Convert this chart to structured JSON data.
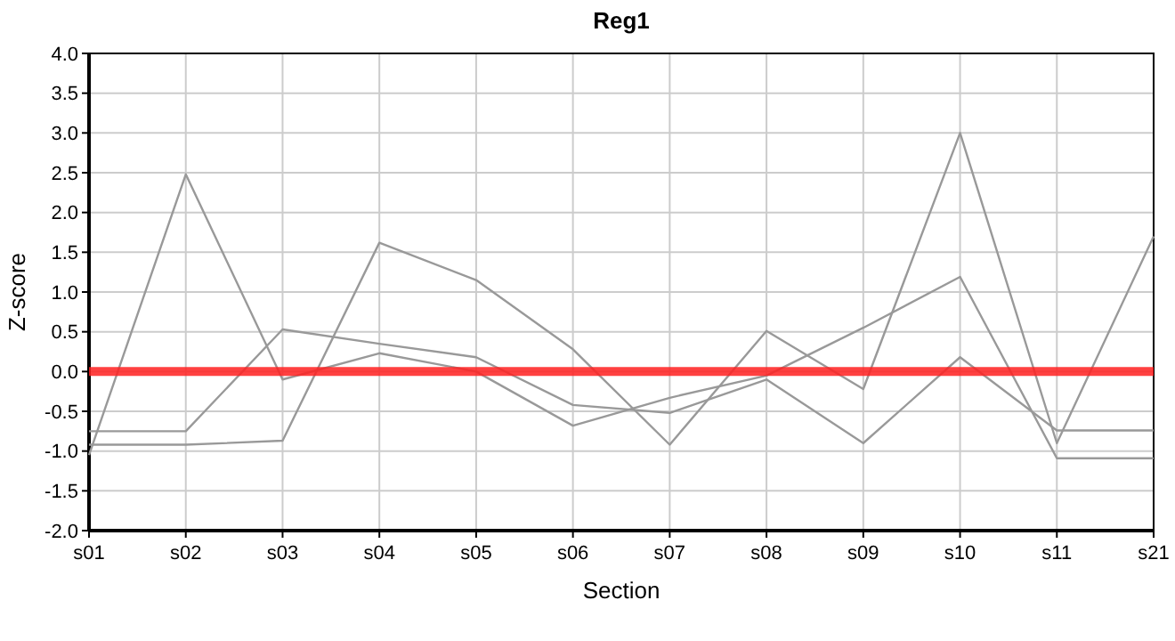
{
  "chart_data": {
    "type": "line",
    "title": "Reg1",
    "xlabel": "Section",
    "ylabel": "Z-score",
    "categories": [
      "s01",
      "s02",
      "s03",
      "s04",
      "s05",
      "s06",
      "s07",
      "s08",
      "s09",
      "s10",
      "s11",
      "s21"
    ],
    "series": [
      {
        "color": "#999999",
        "values": [
          -1.05,
          2.48,
          -0.1,
          0.23,
          0.0,
          -0.68,
          -0.33,
          -0.05,
          0.55,
          1.19,
          -1.09,
          -1.09
        ]
      },
      {
        "color": "#999999",
        "values": [
          -0.92,
          -0.92,
          -0.87,
          1.62,
          1.15,
          0.28,
          -0.92,
          0.51,
          -0.22,
          3.0,
          -0.9,
          1.7
        ]
      },
      {
        "color": "#999999",
        "values": [
          -0.75,
          -0.75,
          0.53,
          0.35,
          0.18,
          -0.42,
          -0.52,
          -0.1,
          -0.9,
          0.18,
          -0.74,
          -0.74
        ]
      }
    ],
    "ylim": [
      -2,
      4
    ],
    "yticks": [
      {
        "value": -2,
        "label": "-2.0"
      },
      {
        "value": -1.5,
        "label": "-1.5"
      },
      {
        "value": -1,
        "label": "-1.0"
      },
      {
        "value": -0.5,
        "label": "-0.5"
      },
      {
        "value": 0,
        "label": "0.0"
      },
      {
        "value": 0.5,
        "label": "0.5"
      },
      {
        "value": 1,
        "label": "1.0"
      },
      {
        "value": 1.5,
        "label": "1.5"
      },
      {
        "value": 2,
        "label": "2.0"
      },
      {
        "value": 2.5,
        "label": "2.5"
      },
      {
        "value": 3,
        "label": "3.0"
      },
      {
        "value": 3.5,
        "label": "3.5"
      },
      {
        "value": 4,
        "label": "4.0"
      }
    ],
    "grid": true,
    "marker": "none",
    "line_style": "solid",
    "ref_lines": [
      {
        "axis": "y",
        "value": 0,
        "color": "#ff2020"
      }
    ]
  }
}
